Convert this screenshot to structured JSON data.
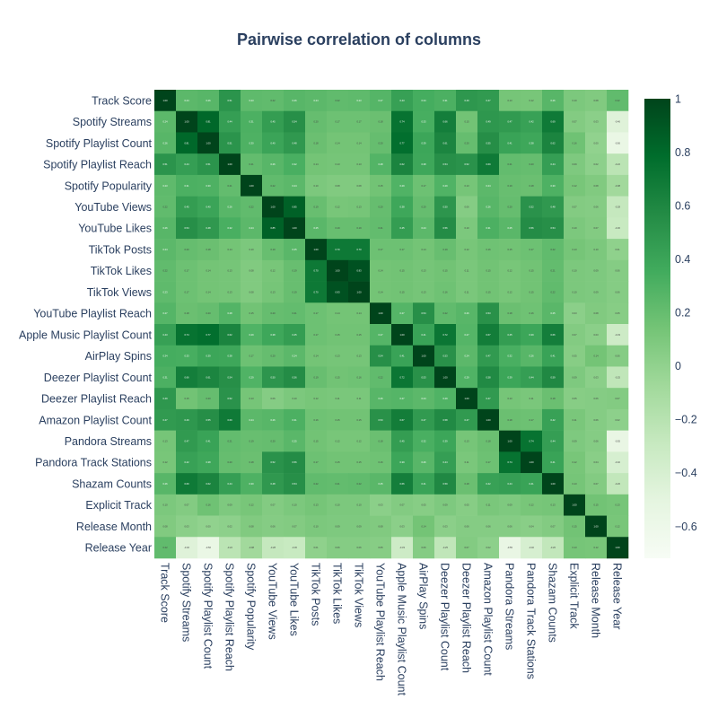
{
  "chart_data": {
    "type": "heatmap",
    "title": "Pairwise correlation of columns",
    "labels": [
      "Track Score",
      "Spotify Streams",
      "Spotify Playlist Count",
      "Spotify Playlist Reach",
      "Spotify Popularity",
      "YouTube Views",
      "YouTube Likes",
      "TikTok Posts",
      "TikTok Likes",
      "TikTok Views",
      "YouTube Playlist Reach",
      "Apple Music Playlist Count",
      "AirPlay Spins",
      "Deezer Playlist Count",
      "Deezer Playlist Reach",
      "Amazon Playlist Count",
      "Pandora Streams",
      "Pandora Track Stations",
      "Shazam Counts",
      "Explicit Track",
      "Release Month",
      "Release Year"
    ],
    "values": [
      [
        1.0,
        0.24,
        0.26,
        0.51,
        0.23,
        0.22,
        0.26,
        0.24,
        0.22,
        0.23,
        0.27,
        0.43,
        0.34,
        0.31,
        0.49,
        0.47,
        0.13,
        0.12,
        0.26,
        0.1,
        0.08,
        0.22
      ],
      [
        0.24,
        1.0,
        0.81,
        0.44,
        0.31,
        0.45,
        0.54,
        0.2,
        0.17,
        0.17,
        0.18,
        0.74,
        0.33,
        0.66,
        0.15,
        0.49,
        0.47,
        0.42,
        0.69,
        0.07,
        0.03,
        -0.46
      ],
      [
        0.26,
        0.81,
        1.0,
        0.51,
        0.3,
        0.4,
        0.48,
        0.18,
        0.14,
        0.14,
        0.2,
        0.77,
        0.39,
        0.61,
        0.2,
        0.55,
        0.41,
        0.38,
        0.62,
        0.16,
        0.0,
        -0.56
      ],
      [
        0.51,
        0.44,
        0.51,
        1.0,
        0.21,
        0.26,
        0.32,
        0.14,
        0.13,
        0.13,
        0.28,
        0.62,
        0.38,
        0.54,
        0.52,
        0.69,
        0.21,
        0.2,
        0.44,
        0.09,
        0.02,
        -0.22
      ],
      [
        0.23,
        0.31,
        0.3,
        0.21,
        1.0,
        0.22,
        0.24,
        0.1,
        0.08,
        0.08,
        0.15,
        0.29,
        0.17,
        0.29,
        0.13,
        0.24,
        0.19,
        0.18,
        0.3,
        0.12,
        0.08,
        -0.08
      ],
      [
        0.22,
        0.45,
        0.4,
        0.26,
        0.22,
        1.0,
        0.85,
        0.19,
        0.12,
        0.13,
        0.2,
        0.38,
        0.2,
        0.5,
        0.06,
        0.26,
        0.2,
        0.52,
        0.48,
        0.07,
        0.06,
        -0.28
      ],
      [
        0.26,
        0.54,
        0.48,
        0.32,
        0.24,
        0.85,
        1.0,
        0.25,
        0.19,
        0.19,
        0.21,
        0.45,
        0.24,
        0.56,
        0.1,
        0.31,
        0.25,
        0.56,
        0.54,
        0.1,
        0.07,
        -0.3
      ],
      [
        0.24,
        0.2,
        0.18,
        0.14,
        0.1,
        0.19,
        0.25,
        1.0,
        0.7,
        0.7,
        0.17,
        0.17,
        0.14,
        0.19,
        0.12,
        0.16,
        0.15,
        0.17,
        0.22,
        0.13,
        0.1,
        0.01
      ],
      [
        0.22,
        0.17,
        0.14,
        0.13,
        0.08,
        0.12,
        0.19,
        0.7,
        1.0,
        0.93,
        0.14,
        0.15,
        0.13,
        0.15,
        0.11,
        0.15,
        0.12,
        0.15,
        0.21,
        0.1,
        0.09,
        0.06
      ],
      [
        0.23,
        0.17,
        0.14,
        0.13,
        0.08,
        0.13,
        0.19,
        0.7,
        0.93,
        1.0,
        0.14,
        0.15,
        0.13,
        0.16,
        0.11,
        0.15,
        0.12,
        0.15,
        0.22,
        0.1,
        0.09,
        0.06
      ],
      [
        0.27,
        0.18,
        0.2,
        0.28,
        0.15,
        0.2,
        0.21,
        0.17,
        0.14,
        0.14,
        1.0,
        0.27,
        0.54,
        0.22,
        0.26,
        0.53,
        0.18,
        0.16,
        0.25,
        0.03,
        0.08,
        0.05
      ],
      [
        0.43,
        0.74,
        0.77,
        0.62,
        0.29,
        0.38,
        0.45,
        0.17,
        0.15,
        0.15,
        0.27,
        1.0,
        0.41,
        0.72,
        0.27,
        0.67,
        0.45,
        0.39,
        0.66,
        0.07,
        0.03,
        -0.33
      ],
      [
        0.34,
        0.33,
        0.39,
        0.38,
        0.17,
        0.2,
        0.24,
        0.14,
        0.13,
        0.13,
        0.54,
        0.41,
        1.0,
        0.53,
        0.24,
        0.47,
        0.32,
        0.26,
        0.41,
        0.05,
        0.14,
        0.06
      ],
      [
        0.31,
        0.66,
        0.61,
        0.54,
        0.29,
        0.5,
        0.56,
        0.19,
        0.15,
        0.16,
        0.22,
        0.72,
        0.53,
        1.0,
        0.29,
        0.58,
        0.39,
        0.44,
        0.59,
        0.09,
        0.03,
        -0.25
      ],
      [
        0.49,
        0.15,
        0.2,
        0.52,
        0.13,
        0.06,
        0.1,
        0.12,
        0.11,
        0.11,
        0.26,
        0.27,
        0.24,
        0.29,
        1.0,
        0.47,
        0.13,
        0.11,
        0.18,
        0.05,
        0.06,
        0.07
      ],
      [
        0.47,
        0.49,
        0.55,
        0.69,
        0.24,
        0.26,
        0.31,
        0.16,
        0.15,
        0.15,
        0.53,
        0.67,
        0.47,
        0.58,
        0.47,
        1.0,
        0.18,
        0.17,
        0.42,
        0.11,
        0.06,
        0.02
      ],
      [
        0.13,
        0.47,
        0.41,
        0.21,
        0.19,
        0.2,
        0.25,
        0.15,
        0.12,
        0.12,
        0.18,
        0.45,
        0.32,
        0.39,
        0.13,
        0.18,
        1.0,
        0.74,
        0.44,
        0.09,
        0.06,
        -0.55
      ],
      [
        0.12,
        0.42,
        0.38,
        0.2,
        0.18,
        0.52,
        0.56,
        0.17,
        0.15,
        0.15,
        0.16,
        0.39,
        0.26,
        0.44,
        0.11,
        0.17,
        0.74,
        1.0,
        0.41,
        0.12,
        0.04,
        -0.4
      ],
      [
        0.26,
        0.69,
        0.62,
        0.44,
        0.3,
        0.48,
        0.54,
        0.22,
        0.21,
        0.22,
        0.25,
        0.66,
        0.41,
        0.59,
        0.18,
        0.42,
        0.44,
        0.41,
        1.0,
        0.13,
        0.07,
        -0.26
      ],
      [
        0.1,
        0.07,
        0.16,
        0.09,
        0.12,
        0.07,
        0.1,
        0.13,
        0.1,
        0.1,
        0.03,
        0.07,
        0.05,
        0.09,
        0.05,
        0.11,
        0.09,
        0.12,
        0.13,
        1.0,
        0.15,
        0.13
      ],
      [
        0.08,
        0.03,
        0.0,
        0.02,
        0.08,
        0.06,
        0.07,
        0.1,
        0.09,
        0.09,
        0.08,
        0.03,
        0.14,
        0.03,
        0.06,
        0.06,
        0.06,
        0.04,
        0.07,
        0.15,
        1.0,
        0.12
      ],
      [
        0.22,
        -0.46,
        -0.56,
        -0.22,
        -0.08,
        -0.28,
        -0.3,
        0.01,
        0.06,
        0.06,
        0.05,
        -0.33,
        0.06,
        -0.25,
        0.07,
        0.02,
        -0.55,
        -0.4,
        -0.26,
        0.13,
        0.12,
        1.0
      ]
    ],
    "zmin": -0.72,
    "zmax": 1,
    "colorscale": "Greens",
    "colorbar_ticks": [
      1,
      0.8,
      0.6,
      0.4,
      0.2,
      0,
      -0.2,
      -0.4,
      -0.6
    ],
    "colorbar_tick_labels": [
      "1",
      "0.8",
      "0.6",
      "0.4",
      "0.2",
      "0",
      "−0.2",
      "−0.4",
      "−0.6"
    ]
  }
}
